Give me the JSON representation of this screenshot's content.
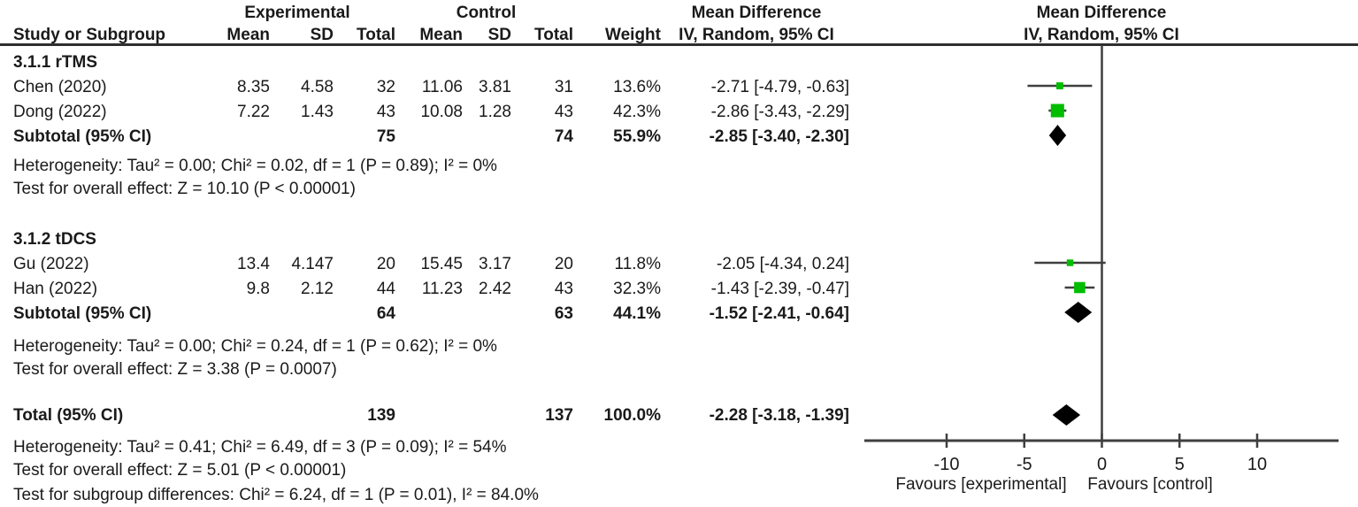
{
  "headers": {
    "experimental": "Experimental",
    "control": "Control",
    "mean_difference": "Mean Difference",
    "method": "IV, Random, 95% CI",
    "columns": {
      "study": "Study or Subgroup",
      "mean": "Mean",
      "sd": "SD",
      "total": "Total",
      "weight": "Weight"
    }
  },
  "sections": [
    {
      "label": "3.1.1 rTMS",
      "studies": [
        {
          "label": "Chen (2020)",
          "mean": "8.35",
          "sd": "4.58",
          "total": "32",
          "c_mean": "11.06",
          "c_sd": "3.81",
          "c_total": "31",
          "weight": "13.6%",
          "ci": "-2.71 [-4.79, -0.63]"
        },
        {
          "label": "Dong (2022)",
          "mean": "7.22",
          "sd": "1.43",
          "total": "43",
          "c_mean": "10.08",
          "c_sd": "1.28",
          "c_total": "43",
          "weight": "42.3%",
          "ci": "-2.86 [-3.43, -2.29]"
        }
      ],
      "subtotal": {
        "label": "Subtotal (95% CI)",
        "total": "75",
        "c_total": "74",
        "weight": "55.9%",
        "ci": "-2.85 [-3.40, -2.30]"
      },
      "heterogeneity": "Heterogeneity: Tau² = 0.00; Chi² = 0.02, df = 1 (P = 0.89); I² = 0%",
      "overall_effect": "Test for overall effect: Z = 10.10 (P < 0.00001)"
    },
    {
      "label": "3.1.2 tDCS",
      "studies": [
        {
          "label": "Gu (2022)",
          "mean": "13.4",
          "sd": "4.147",
          "total": "20",
          "c_mean": "15.45",
          "c_sd": "3.17",
          "c_total": "20",
          "weight": "11.8%",
          "ci": "-2.05 [-4.34, 0.24]"
        },
        {
          "label": "Han (2022)",
          "mean": "9.8",
          "sd": "2.12",
          "total": "44",
          "c_mean": "11.23",
          "c_sd": "2.42",
          "c_total": "43",
          "weight": "32.3%",
          "ci": "-1.43 [-2.39, -0.47]"
        }
      ],
      "subtotal": {
        "label": "Subtotal (95% CI)",
        "total": "64",
        "c_total": "63",
        "weight": "44.1%",
        "ci": "-1.52 [-2.41, -0.64]"
      },
      "heterogeneity": "Heterogeneity: Tau² = 0.00; Chi² = 0.24, df = 1 (P = 0.62); I² = 0%",
      "overall_effect": "Test for overall effect: Z = 3.38 (P = 0.0007)"
    }
  ],
  "total": {
    "label": "Total (95% CI)",
    "total": "139",
    "c_total": "137",
    "weight": "100.0%",
    "ci": "-2.28 [-3.18, -1.39]",
    "heterogeneity": "Heterogeneity: Tau² = 0.41; Chi² = 6.49, df = 3 (P = 0.09); I² = 54%",
    "overall_effect": "Test for overall effect: Z = 5.01 (P < 0.00001)",
    "subgroup_diff": "Test for subgroup differences: Chi² = 6.24, df = 1 (P = 0.01), I² = 84.0%"
  },
  "chart_data": {
    "type": "forest",
    "effect_measure": "Mean Difference, IV, Random, 95% CI",
    "axis": {
      "ticks": [
        -10,
        -5,
        0,
        5,
        10
      ],
      "range": [
        -15.3,
        15.3
      ],
      "left_label": "Favours [experimental]",
      "right_label": "Favours [control]"
    },
    "points": [
      {
        "id": "chen",
        "study": "Chen (2020)",
        "marker": "square",
        "md": -2.71,
        "lo": -4.79,
        "hi": -0.63,
        "weight": 13.6
      },
      {
        "id": "dong",
        "study": "Dong (2022)",
        "marker": "square",
        "md": -2.86,
        "lo": -3.43,
        "hi": -2.29,
        "weight": 42.3
      },
      {
        "id": "rtms_subtotal",
        "study": "rTMS Subtotal",
        "marker": "diamond",
        "md": -2.85,
        "lo": -3.4,
        "hi": -2.3
      },
      {
        "id": "gu",
        "study": "Gu (2022)",
        "marker": "square",
        "md": -2.05,
        "lo": -4.34,
        "hi": 0.24,
        "weight": 11.8
      },
      {
        "id": "han",
        "study": "Han (2022)",
        "marker": "square",
        "md": -1.43,
        "lo": -2.39,
        "hi": -0.47,
        "weight": 32.3
      },
      {
        "id": "tdcs_subtotal",
        "study": "tDCS Subtotal",
        "marker": "diamond",
        "md": -1.52,
        "lo": -2.41,
        "hi": -0.64
      },
      {
        "id": "total",
        "study": "Total",
        "marker": "diamond",
        "md": -2.28,
        "lo": -3.18,
        "hi": -1.39
      }
    ],
    "colors": {
      "square": "#00bd00",
      "diamond": "#000000",
      "line": "#3f3f3f"
    }
  }
}
